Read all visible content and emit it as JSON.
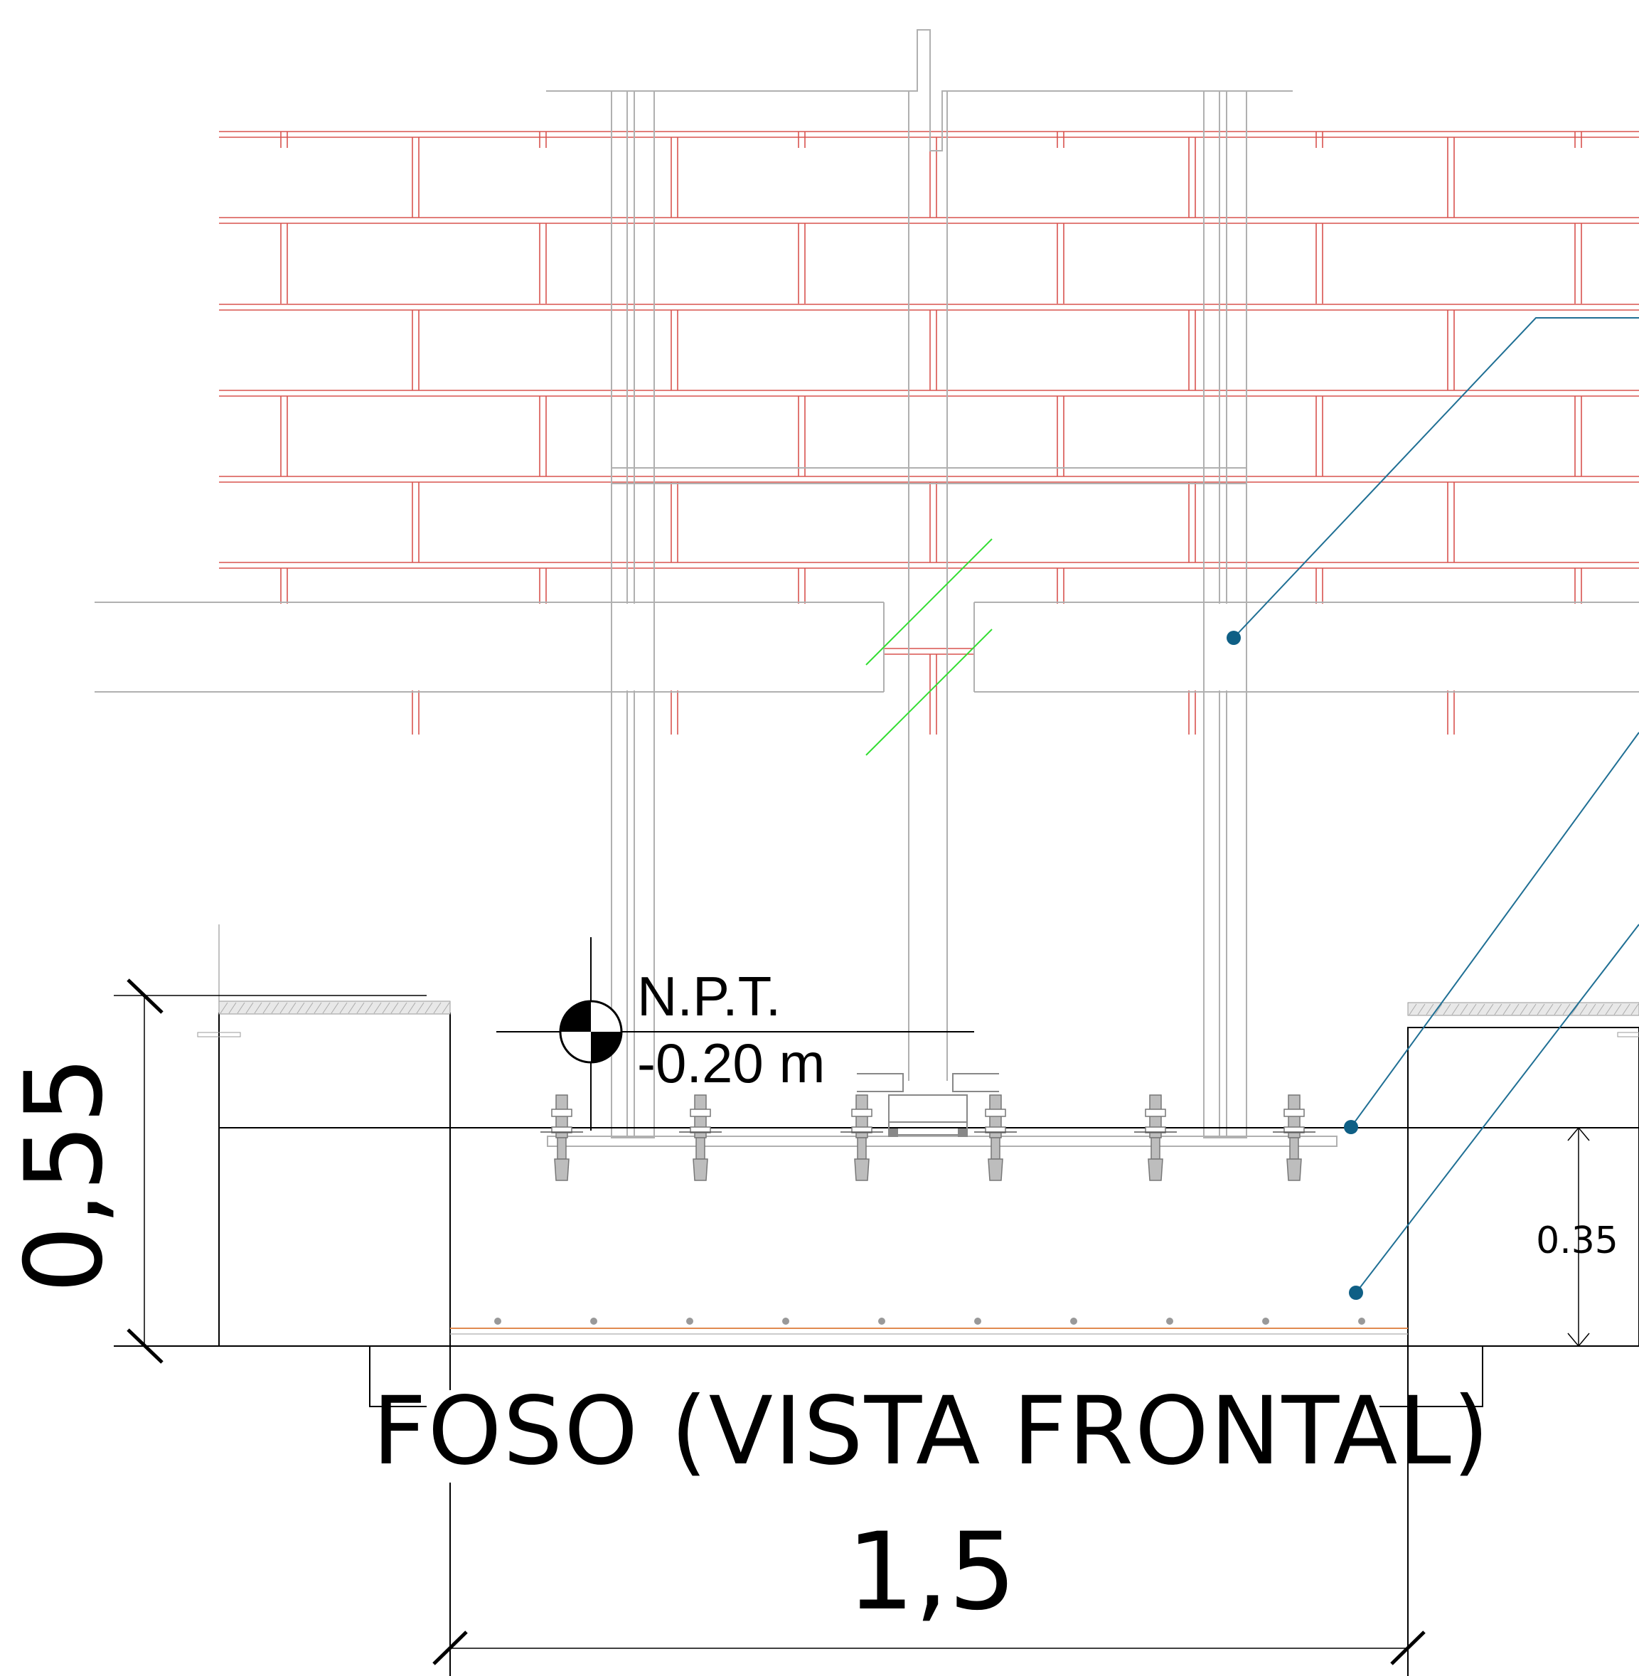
{
  "drawing": {
    "title": "FOSO (VISTA FRONTAL)",
    "level_label": "N.P.T.",
    "level_value": "-0.20 m",
    "dim_height": "0,55",
    "dim_width": "1,5",
    "dim_slab": "0.35"
  },
  "colors": {
    "brick": "#d9534f",
    "steel": "#9a9a9a",
    "leader": "#1f6f94",
    "leader_dot": "#0f5f85",
    "break_line": "#33dd33",
    "rebar": "#e08a50",
    "ink": "#000000"
  },
  "icons": {
    "level_marker": "level-marker-icon",
    "break_symbol": "break-line-icon"
  }
}
